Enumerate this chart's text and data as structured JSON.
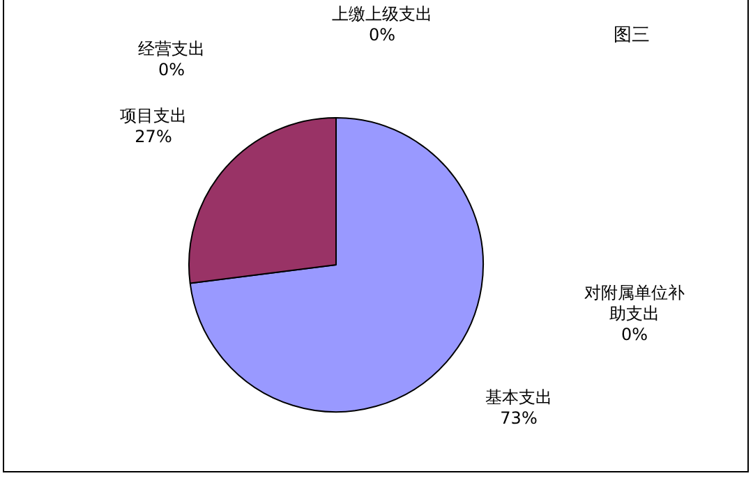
{
  "chart_data": {
    "type": "pie",
    "title": "图三",
    "categories": [
      "基本支出",
      "项目支出",
      "经营支出",
      "上缴上级支出",
      "对附属单位补助支出"
    ],
    "values": [
      73,
      27,
      0,
      0,
      0
    ],
    "colors": [
      "#9999ff",
      "#993366",
      "#ffffcc",
      "#ccffff",
      "#660066"
    ],
    "value_labels": [
      "73%",
      "27%",
      "0%",
      "0%",
      "0%"
    ],
    "legend": false
  }
}
